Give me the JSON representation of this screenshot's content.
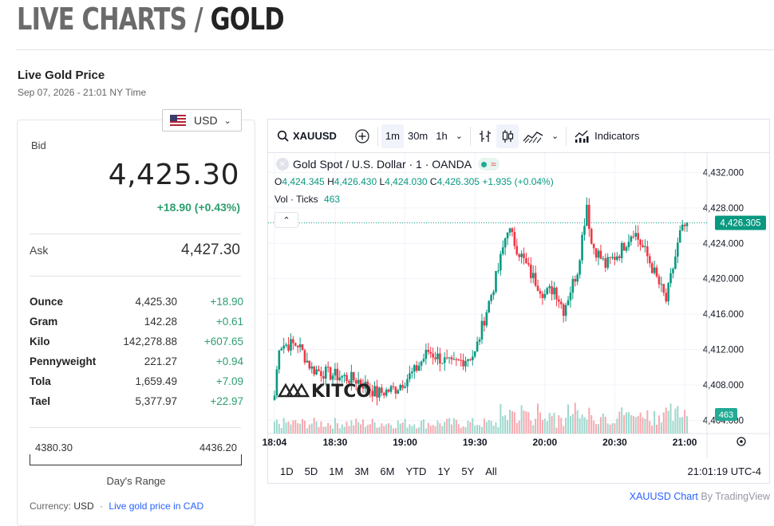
{
  "header": {
    "title_prefix": "LIVE CHARTS",
    "title_sep": "/",
    "title_metal": "GOLD"
  },
  "section": {
    "title": "Live Gold Price",
    "date": "Sep 07, 2026 - 21:01 NY Time"
  },
  "currency_select": {
    "value": "USD",
    "flag_icon": "us-flag-icon"
  },
  "price_card": {
    "bid_label": "Bid",
    "bid_value": "4,425.30",
    "bid_change": "+18.90 (+0.43%)",
    "ask_label": "Ask",
    "ask_value": "4,427.30",
    "units": [
      {
        "name": "Ounce",
        "value": "4,425.30",
        "change": "+18.90"
      },
      {
        "name": "Gram",
        "value": "142.28",
        "change": "+0.61"
      },
      {
        "name": "Kilo",
        "value": "142,278.88",
        "change": "+607.65"
      },
      {
        "name": "Pennyweight",
        "value": "221.27",
        "change": "+0.94"
      },
      {
        "name": "Tola",
        "value": "1,659.49",
        "change": "+7.09"
      },
      {
        "name": "Tael",
        "value": "5,377.97",
        "change": "+22.97"
      }
    ],
    "range_low": "4380.30",
    "range_high": "4436.20",
    "range_label": "Day's Range",
    "currency_label": "Currency:",
    "currency_value": "USD",
    "currency_sep": "·",
    "currency_link": "Live gold price in CAD"
  },
  "toolbar": {
    "symbol": "XAUUSD",
    "intervals": [
      "1m",
      "30m",
      "1h"
    ],
    "active_interval": "1m",
    "indicators_label": "Indicators"
  },
  "legend": {
    "title": "Gold Spot / U.S. Dollar · 1 · OANDA",
    "o_label": "O",
    "o_value": "4,424.345",
    "h_label": "H",
    "h_value": "4,426.430",
    "l_label": "L",
    "l_value": "4,424.030",
    "c_label": "C",
    "c_value": "4,426.305",
    "change_value": "+1.935 (+0.04%)",
    "vol_label": "Vol · Ticks",
    "vol_value": "463"
  },
  "chart_data": {
    "type": "candlestick",
    "xticks": [
      "18:04",
      "18:30",
      "19:00",
      "19:30",
      "20:00",
      "20:30",
      "21:00"
    ],
    "yticks": [
      "4,432.000",
      "4,428.000",
      "4,424.000",
      "4,420.000",
      "4,416.000",
      "4,412.000",
      "4,408.000",
      "4,404.000"
    ],
    "ylim": [
      4402.5,
      4434.2
    ],
    "last_price_label": "4,426.305",
    "last_volume_label": "463",
    "watermark": "KITCO",
    "colors": {
      "up": "#089981",
      "down": "#f23645",
      "volume_up": "#9ed8cd",
      "volume_down": "#f7a9b0"
    },
    "keypoints": [
      [
        "18:04",
        4406.8
      ],
      [
        "18:06",
        4412.5
      ],
      [
        "18:14",
        4412.6
      ],
      [
        "18:20",
        4409.8
      ],
      [
        "18:28",
        4409.2
      ],
      [
        "18:40",
        4408.5
      ],
      [
        "18:48",
        4407.0
      ],
      [
        "18:56",
        4407.6
      ],
      [
        "19:04",
        4409.5
      ],
      [
        "19:10",
        4411.8
      ],
      [
        "19:20",
        4410.2
      ],
      [
        "19:30",
        4411.5
      ],
      [
        "19:34",
        4415.5
      ],
      [
        "19:40",
        4421.0
      ],
      [
        "19:44",
        4425.8
      ],
      [
        "19:48",
        4423.5
      ],
      [
        "19:54",
        4420.5
      ],
      [
        "20:00",
        4418.2
      ],
      [
        "20:04",
        4419.0
      ],
      [
        "20:08",
        4416.5
      ],
      [
        "20:14",
        4421.0
      ],
      [
        "20:18",
        4428.5
      ],
      [
        "20:20",
        4424.0
      ],
      [
        "20:26",
        4421.5
      ],
      [
        "20:32",
        4423.0
      ],
      [
        "20:38",
        4425.5
      ],
      [
        "20:44",
        4422.5
      ],
      [
        "20:52",
        4417.5
      ],
      [
        "20:58",
        4425.0
      ],
      [
        "21:01",
        4426.3
      ]
    ]
  },
  "range_buttons": [
    "1D",
    "5D",
    "1M",
    "3M",
    "6M",
    "YTD",
    "1Y",
    "5Y",
    "All"
  ],
  "clock": "21:01:19 UTC-4",
  "attribution": {
    "link": "XAUUSD Chart",
    "by": "By TradingView"
  }
}
